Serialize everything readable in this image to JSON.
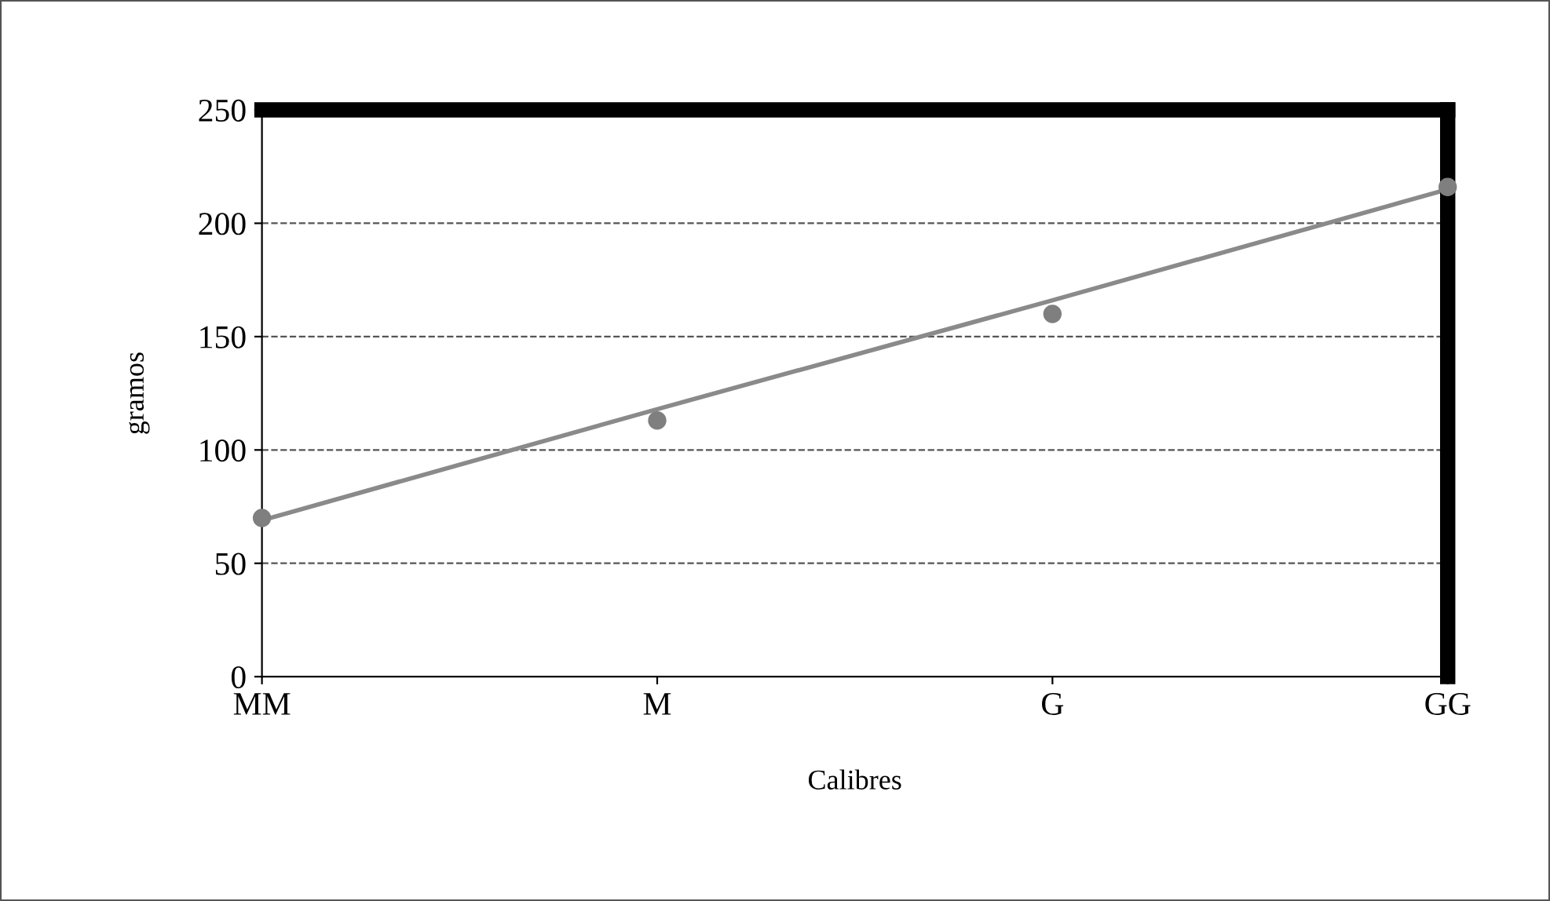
{
  "chart_data": {
    "type": "line",
    "xlabel": "Calibres",
    "ylabel": "gramos",
    "categories": [
      "MM",
      "M",
      "G",
      "GG"
    ],
    "series": [
      {
        "type": "scatter",
        "marker": "circle",
        "color": "#7f7f7f",
        "values": [
          70,
          113,
          160,
          216
        ]
      },
      {
        "marker": "none",
        "color": "#8a8a8a",
        "values": [
          69,
          118,
          166,
          215
        ]
      }
    ],
    "ylim": [
      0,
      250
    ],
    "yticks": [
      0,
      50,
      100,
      150,
      200,
      250
    ],
    "grid": "y",
    "line_style": "solid",
    "legend": false
  }
}
